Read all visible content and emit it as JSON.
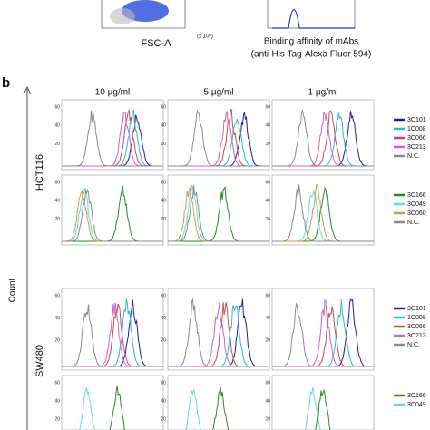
{
  "top": {
    "scatter_x_label": "FSC-A",
    "scatter_x_unit": "(x 10⁶)",
    "hist_label": [
      "Binding affinity of mAbs",
      "(anti-His Tag-Alexa Fluor 594)"
    ]
  },
  "panel_label": "b",
  "columns": [
    "10 µg/ml",
    "5 µg/ml",
    "1 µg/ml"
  ],
  "y_axis_label": "Count",
  "panel_yticks": [
    "60",
    "40",
    "20"
  ],
  "rows": [
    {
      "cell_line": "HCT116",
      "legend": [
        {
          "name": "3C101",
          "color": "#1c1ca8"
        },
        {
          "name": "1C008",
          "color": "#2fb8d0"
        },
        {
          "name": "3C066",
          "color": "#c4504c"
        },
        {
          "name": "3C213",
          "color": "#d060d0"
        },
        {
          "name": "N.C.",
          "color": "#8a8a8a"
        }
      ]
    },
    {
      "legend": [
        {
          "name": "3C166",
          "color": "#2a8a2a"
        },
        {
          "name": "3C049",
          "color": "#66dcdc"
        },
        {
          "name": "3C060",
          "color": "#d09a50"
        },
        {
          "name": "N.C.",
          "color": "#8a8a8a"
        }
      ]
    },
    {
      "cell_line": "SW480",
      "legend": [
        {
          "name": "3C101",
          "color": "#1c1ca8"
        },
        {
          "name": "1C008",
          "color": "#2fb8d0"
        },
        {
          "name": "3C066",
          "color": "#c4504c"
        },
        {
          "name": "3C213",
          "color": "#d060d0"
        },
        {
          "name": "N.C.",
          "color": "#8a8a8a"
        }
      ]
    },
    {
      "legend": [
        {
          "name": "3C166",
          "color": "#2a8a2a"
        },
        {
          "name": "3C049",
          "color": "#66dcdc"
        }
      ]
    }
  ]
}
